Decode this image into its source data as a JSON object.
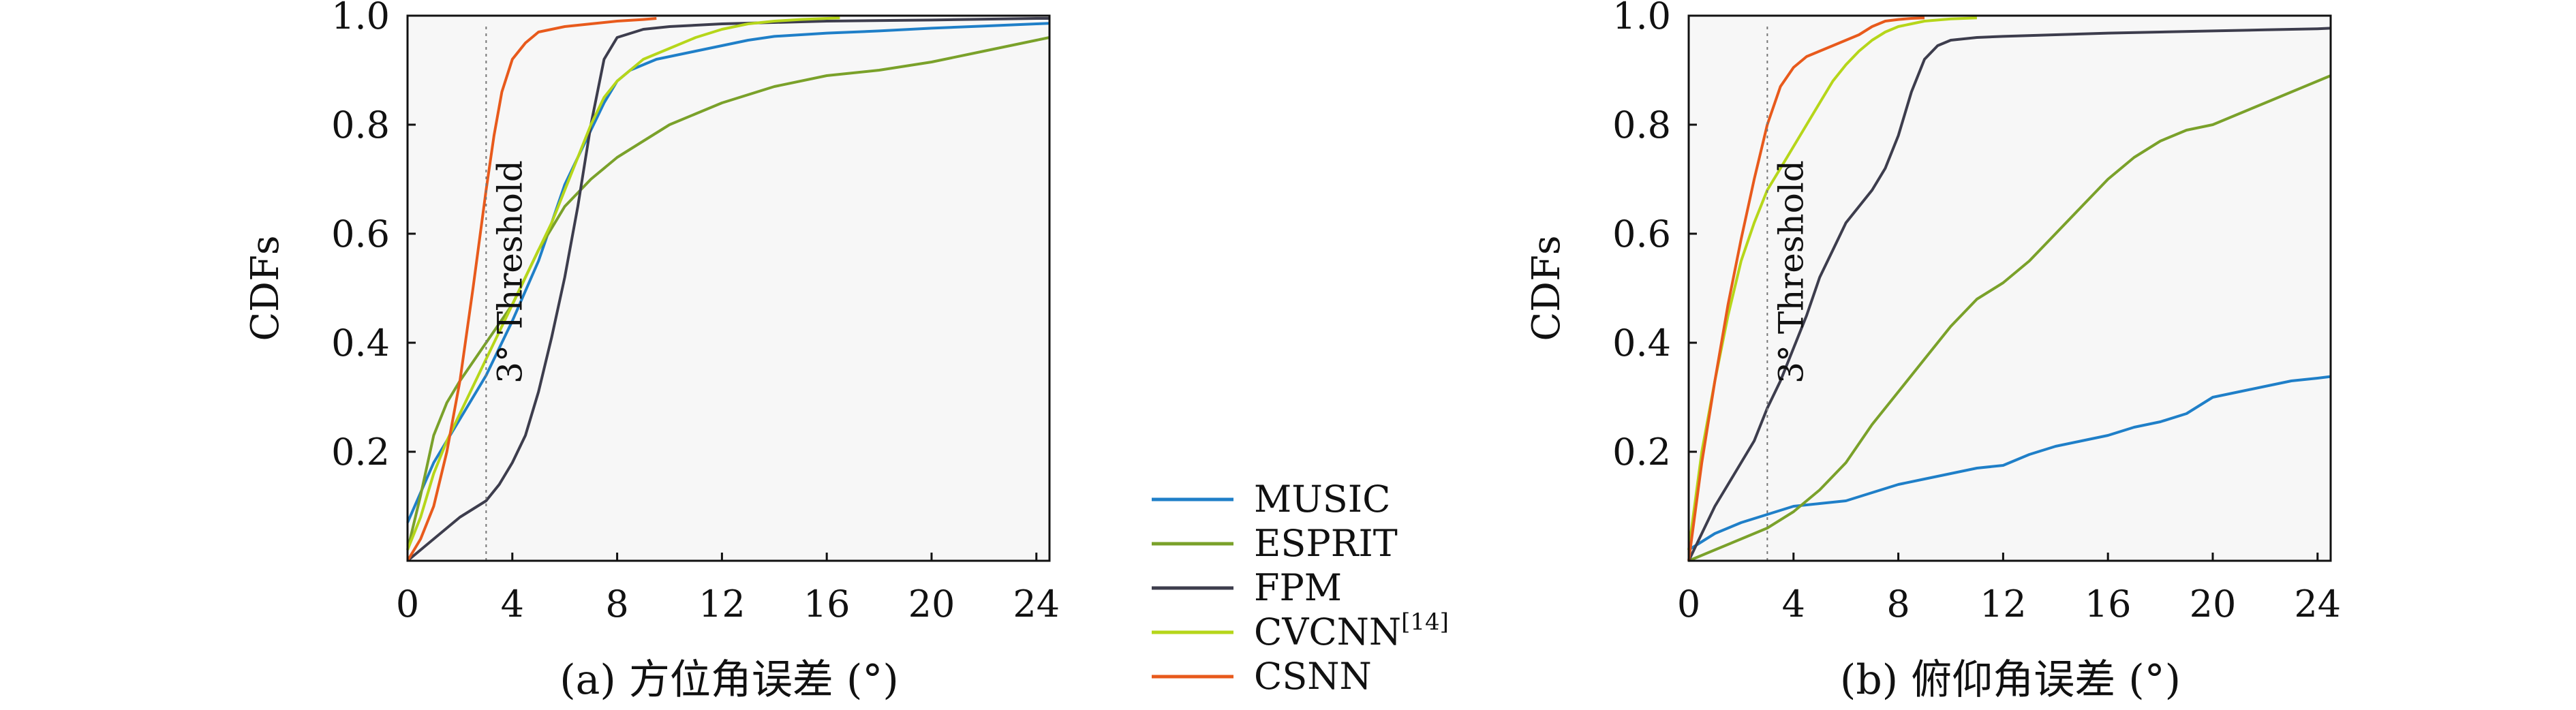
{
  "colors": {
    "MUSIC": "#1f7fc8",
    "ESPRIT": "#7aa12a",
    "FPM": "#3d3d4d",
    "CVCNN": "#b6d61a",
    "CSNN": "#e85a1c",
    "threshold": "#777777",
    "axis": "#111111",
    "plot_bg": "#f7f7f7"
  },
  "legend": {
    "entries": [
      {
        "key": "MUSIC",
        "label": "MUSIC",
        "superscript": ""
      },
      {
        "key": "ESPRIT",
        "label": "ESPRIT",
        "superscript": ""
      },
      {
        "key": "FPM",
        "label": "FPM",
        "superscript": ""
      },
      {
        "key": "CVCNN",
        "label": "CVCNN",
        "superscript": "[14]"
      },
      {
        "key": "CSNN",
        "label": "CSNN",
        "superscript": ""
      }
    ]
  },
  "chart_data": [
    {
      "type": "line",
      "title": "(a) 方位角误差 (°)",
      "xlabel": "",
      "ylabel": "CDFs",
      "xlim": [
        0,
        24.5
      ],
      "ylim": [
        0,
        1.0
      ],
      "xticks": [
        0,
        4,
        8,
        12,
        16,
        20,
        24
      ],
      "yticks": [
        0.2,
        0.4,
        0.6,
        0.8,
        1.0
      ],
      "annotation": {
        "text": "3° Threshold",
        "x": 3
      },
      "series": [
        {
          "name": "MUSIC",
          "x": [
            0,
            1,
            2,
            3,
            4,
            5,
            5.5,
            6,
            6.5,
            7,
            7.5,
            8,
            8.5,
            9,
            9.5,
            10,
            11,
            12,
            13,
            14,
            16,
            18,
            20,
            22,
            24,
            24.5
          ],
          "y": [
            0.07,
            0.18,
            0.26,
            0.34,
            0.44,
            0.55,
            0.62,
            0.69,
            0.74,
            0.79,
            0.84,
            0.88,
            0.9,
            0.91,
            0.92,
            0.925,
            0.935,
            0.945,
            0.955,
            0.962,
            0.968,
            0.972,
            0.977,
            0.981,
            0.985,
            0.986
          ]
        },
        {
          "name": "ESPRIT",
          "x": [
            0,
            0.5,
            1,
            1.5,
            2,
            3,
            4,
            5,
            6,
            7,
            8,
            9,
            10,
            11,
            12,
            14,
            16,
            18,
            20,
            22,
            24,
            24.5
          ],
          "y": [
            0.02,
            0.12,
            0.23,
            0.29,
            0.33,
            0.4,
            0.47,
            0.57,
            0.65,
            0.7,
            0.74,
            0.77,
            0.8,
            0.82,
            0.84,
            0.87,
            0.89,
            0.9,
            0.915,
            0.935,
            0.955,
            0.96
          ]
        },
        {
          "name": "FPM",
          "x": [
            0,
            0.5,
            1,
            2,
            3,
            3.5,
            4,
            4.5,
            5,
            5.5,
            6,
            6.5,
            7,
            7.5,
            8,
            9,
            10,
            12,
            16,
            20,
            24,
            24.5
          ],
          "y": [
            0,
            0.02,
            0.04,
            0.08,
            0.11,
            0.14,
            0.18,
            0.23,
            0.31,
            0.41,
            0.52,
            0.65,
            0.8,
            0.92,
            0.96,
            0.975,
            0.98,
            0.985,
            0.99,
            0.992,
            0.995,
            0.995
          ]
        },
        {
          "name": "CVCNN",
          "x": [
            0,
            0.5,
            1,
            1.5,
            2,
            2.5,
            3,
            3.5,
            4,
            4.5,
            5,
            5.5,
            6,
            6.5,
            7,
            7.5,
            8,
            8.5,
            9,
            10,
            11,
            12,
            13,
            14,
            15,
            16,
            16.5
          ],
          "y": [
            0.02,
            0.08,
            0.16,
            0.22,
            0.27,
            0.32,
            0.37,
            0.42,
            0.47,
            0.52,
            0.57,
            0.62,
            0.68,
            0.74,
            0.8,
            0.85,
            0.88,
            0.9,
            0.92,
            0.94,
            0.96,
            0.975,
            0.985,
            0.99,
            0.993,
            0.995,
            0.996
          ]
        },
        {
          "name": "CSNN",
          "x": [
            0,
            0.5,
            1,
            1.5,
            2,
            2.5,
            3,
            3.3,
            3.6,
            4,
            4.5,
            5,
            6,
            7,
            8,
            9,
            9.5
          ],
          "y": [
            0,
            0.04,
            0.1,
            0.2,
            0.33,
            0.5,
            0.68,
            0.78,
            0.86,
            0.92,
            0.95,
            0.97,
            0.98,
            0.985,
            0.99,
            0.993,
            0.995
          ]
        }
      ]
    },
    {
      "type": "line",
      "title": "(b) 俯仰角误差 (°)",
      "xlabel": "",
      "ylabel": "CDFs",
      "xlim": [
        0,
        24.5
      ],
      "ylim": [
        0,
        1.0
      ],
      "xticks": [
        0,
        4,
        8,
        12,
        16,
        20,
        24
      ],
      "yticks": [
        0.2,
        0.4,
        0.6,
        0.8,
        1.0
      ],
      "annotation": {
        "text": "3° Threshold",
        "x": 3
      },
      "series": [
        {
          "name": "MUSIC",
          "x": [
            0,
            1,
            2,
            3,
            4,
            5,
            6,
            7,
            8,
            9,
            10,
            11,
            12,
            13,
            14,
            15,
            16,
            17,
            18,
            19,
            20,
            21,
            22,
            23,
            24,
            24.5
          ],
          "y": [
            0.02,
            0.05,
            0.07,
            0.085,
            0.1,
            0.105,
            0.11,
            0.125,
            0.14,
            0.15,
            0.16,
            0.17,
            0.175,
            0.195,
            0.21,
            0.22,
            0.23,
            0.245,
            0.255,
            0.27,
            0.3,
            0.31,
            0.32,
            0.33,
            0.335,
            0.338
          ]
        },
        {
          "name": "ESPRIT",
          "x": [
            0,
            1,
            2,
            3,
            4,
            5,
            6,
            7,
            8,
            9,
            10,
            11,
            12,
            13,
            14,
            15,
            16,
            17,
            18,
            19,
            20,
            21,
            22,
            23,
            24,
            24.5
          ],
          "y": [
            0,
            0.02,
            0.04,
            0.06,
            0.09,
            0.13,
            0.18,
            0.25,
            0.31,
            0.37,
            0.43,
            0.48,
            0.51,
            0.55,
            0.6,
            0.65,
            0.7,
            0.74,
            0.77,
            0.79,
            0.8,
            0.82,
            0.84,
            0.86,
            0.88,
            0.89
          ]
        },
        {
          "name": "FPM",
          "x": [
            0,
            0.5,
            1,
            1.5,
            2,
            2.5,
            3,
            3.5,
            4,
            4.5,
            5,
            5.5,
            6,
            6.5,
            7,
            7.5,
            8,
            8.5,
            9,
            9.5,
            10,
            11,
            12,
            14,
            16,
            18,
            20,
            22,
            24,
            24.5
          ],
          "y": [
            0,
            0.05,
            0.1,
            0.14,
            0.18,
            0.22,
            0.28,
            0.33,
            0.39,
            0.45,
            0.52,
            0.57,
            0.62,
            0.65,
            0.68,
            0.72,
            0.78,
            0.86,
            0.92,
            0.945,
            0.955,
            0.96,
            0.962,
            0.965,
            0.968,
            0.97,
            0.972,
            0.974,
            0.976,
            0.977
          ]
        },
        {
          "name": "CVCNN",
          "x": [
            0,
            0.5,
            1,
            1.5,
            2,
            2.5,
            3,
            3.5,
            4,
            4.5,
            5,
            5.5,
            6,
            6.5,
            7,
            7.5,
            8,
            8.5,
            9,
            9.5,
            10,
            10.5,
            11
          ],
          "y": [
            0.02,
            0.2,
            0.33,
            0.45,
            0.55,
            0.62,
            0.68,
            0.72,
            0.76,
            0.8,
            0.84,
            0.88,
            0.91,
            0.935,
            0.955,
            0.97,
            0.98,
            0.985,
            0.99,
            0.992,
            0.994,
            0.995,
            0.996
          ]
        },
        {
          "name": "CSNN",
          "x": [
            0,
            0.5,
            1,
            1.5,
            2,
            2.5,
            3,
            3.5,
            4,
            4.5,
            5,
            5.5,
            6,
            6.5,
            7,
            7.5,
            8,
            8.5,
            9
          ],
          "y": [
            0,
            0.18,
            0.33,
            0.47,
            0.59,
            0.7,
            0.8,
            0.87,
            0.905,
            0.925,
            0.935,
            0.945,
            0.955,
            0.965,
            0.98,
            0.99,
            0.993,
            0.995,
            0.996
          ]
        }
      ]
    }
  ]
}
